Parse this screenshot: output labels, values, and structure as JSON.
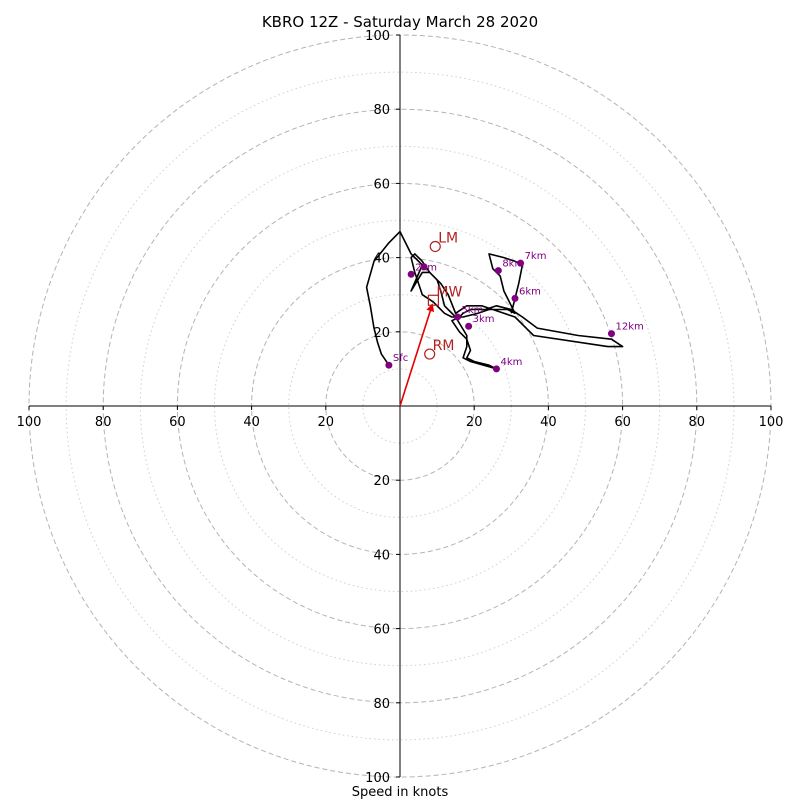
{
  "chart_data": {
    "type": "hodograph",
    "title": "KBRO 12Z - Saturday March 28 2020",
    "xlabel": "Speed in knots",
    "range": [
      -100,
      100
    ],
    "rings_major": [
      20,
      40,
      60,
      80,
      100
    ],
    "rings_minor": [
      10,
      30,
      50,
      70,
      90
    ],
    "tick_values": [
      20,
      40,
      60,
      80,
      100
    ],
    "x_tick_labels": [
      "100",
      "80",
      "60",
      "40",
      "20",
      "20",
      "40",
      "60",
      "80",
      "100"
    ],
    "y_tick_labels_top": [
      "20",
      "40",
      "60",
      "80",
      "100"
    ],
    "y_tick_labels_bottom": [
      "20",
      "40",
      "60",
      "80",
      "100"
    ],
    "grid": true,
    "colors": {
      "trace": "#000000",
      "height_marker": "#800080",
      "storm_motion": "#b22222",
      "mean_wind_vector": "#e60000",
      "grid": "#b4b4b4"
    },
    "trace": [
      [
        -3,
        11
      ],
      [
        -5,
        14
      ],
      [
        -6,
        17
      ],
      [
        -7,
        21
      ],
      [
        -8,
        27
      ],
      [
        -9,
        32
      ],
      [
        -7,
        39
      ],
      [
        -3,
        44
      ],
      [
        0,
        47
      ],
      [
        3,
        41
      ],
      [
        6,
        38
      ],
      [
        3,
        31
      ],
      [
        6,
        36
      ],
      [
        8,
        36
      ],
      [
        11,
        33
      ],
      [
        13,
        30
      ],
      [
        15,
        25
      ],
      [
        18,
        27
      ],
      [
        22,
        27
      ],
      [
        25,
        26
      ],
      [
        28,
        25
      ],
      [
        31,
        24
      ],
      [
        34,
        21
      ],
      [
        36,
        19
      ],
      [
        56,
        16
      ],
      [
        60,
        16
      ],
      [
        57,
        18
      ],
      [
        48,
        19
      ],
      [
        37,
        21
      ],
      [
        33,
        24
      ],
      [
        30,
        26
      ],
      [
        26,
        27
      ],
      [
        23,
        26
      ],
      [
        19,
        26
      ],
      [
        17,
        25
      ],
      [
        16,
        24
      ],
      [
        14,
        23
      ],
      [
        16,
        20
      ],
      [
        18,
        18
      ],
      [
        19,
        15
      ],
      [
        18,
        13
      ],
      [
        20,
        12
      ],
      [
        24,
        11
      ],
      [
        26,
        10
      ],
      [
        19,
        12
      ],
      [
        17,
        13
      ],
      [
        18,
        16
      ],
      [
        18,
        19
      ],
      [
        15,
        24
      ],
      [
        12,
        27
      ],
      [
        11,
        31
      ],
      [
        10,
        34
      ],
      [
        8,
        36
      ],
      [
        6,
        39
      ],
      [
        4,
        41
      ],
      [
        3,
        40
      ],
      [
        4,
        36
      ],
      [
        5,
        33
      ],
      [
        6,
        30
      ],
      [
        9,
        28
      ],
      [
        12,
        25
      ],
      [
        14,
        24
      ],
      [
        17,
        24
      ],
      [
        21,
        25
      ],
      [
        24,
        26
      ],
      [
        27,
        26
      ],
      [
        29,
        26
      ],
      [
        31,
        25
      ],
      [
        30,
        27
      ],
      [
        28,
        31
      ],
      [
        27,
        35
      ],
      [
        25,
        37
      ],
      [
        24,
        41
      ],
      [
        28,
        40
      ],
      [
        31,
        39
      ],
      [
        33,
        38
      ],
      [
        32,
        33
      ],
      [
        31,
        29
      ],
      [
        30,
        25
      ]
    ],
    "height_markers": [
      {
        "label": "Sfc",
        "u": -3,
        "v": 11
      },
      {
        "label": "2km",
        "u": 3,
        "v": 35.5
      },
      {
        "label": "3km",
        "u": 18.5,
        "v": 21.5
      },
      {
        "label": "4km",
        "u": 26,
        "v": 10
      },
      {
        "label": "5km",
        "u": 15.5,
        "v": 24
      },
      {
        "label": "6km",
        "u": 31,
        "v": 29
      },
      {
        "label": "7km",
        "u": 32.5,
        "v": 38.5
      },
      {
        "label": "8km",
        "u": 26.5,
        "v": 36.5
      },
      {
        "label": "",
        "u": 6.5,
        "v": 37.5
      },
      {
        "label": "12km",
        "u": 57,
        "v": 19.5
      }
    ],
    "storm_motions": [
      {
        "label": "LM",
        "u": 9.5,
        "v": 43,
        "marker": "circle"
      },
      {
        "label": "MW",
        "u": 9,
        "v": 28.5,
        "marker": "square"
      },
      {
        "label": "RM",
        "u": 8,
        "v": 14,
        "marker": "circle"
      }
    ],
    "mean_wind_vector": {
      "u": 9,
      "v": 28.5
    }
  }
}
